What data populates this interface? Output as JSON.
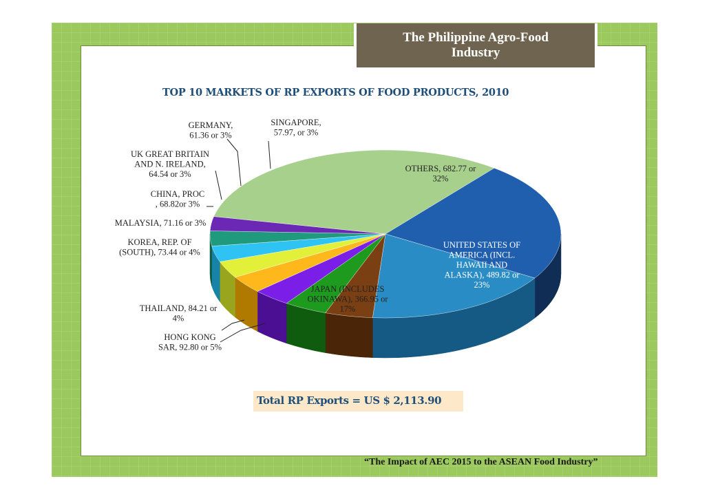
{
  "slide": {
    "header_title": "The Philippine Agro-Food Industry",
    "footer": "“The Impact of AEC 2015 to the ASEAN Food Industry”",
    "total_exports": "Total RP Exports = US $ 2,113.90"
  },
  "chart_data": {
    "type": "pie",
    "title": "TOP 10 MARKETS OF RP EXPORTS OF FOOD PRODUCTS, 2010",
    "slices": [
      {
        "name": "OTHERS",
        "value": 682.77,
        "percent": 32,
        "color": "#a8d08d",
        "side": "#6f9a55",
        "label": [
          "OTHERS, 682.77 or",
          "32%"
        ]
      },
      {
        "name": "UNITED STATES OF AMERICA (INCL. HAWAII AND ALASKA)",
        "value": 489.82,
        "percent": 23,
        "color": "#1f5fae",
        "side": "#0f2d55",
        "label": [
          "UNITED STATES OF",
          "AMERICA (INCL.",
          "HAWAII AND",
          "ALASKA), 489.82 or",
          "23%"
        ]
      },
      {
        "name": "JAPAN (INCLUDES OKINAWA)",
        "value": 366.95,
        "percent": 17,
        "color": "#2a8cc4",
        "side": "#155a85",
        "label": [
          "JAPAN (INCLUDES",
          "OKINAWA), 366.95 or",
          "17%"
        ]
      },
      {
        "name": "HONG KONG SAR",
        "value": 92.8,
        "percent": 5,
        "color": "#7a3f12",
        "side": "#4a2508",
        "label": [
          "HONG KONG",
          "SAR, 92.80 or 5%"
        ]
      },
      {
        "name": "THAILAND",
        "value": 84.21,
        "percent": 4,
        "color": "#1e9a1e",
        "side": "#0f5c0f",
        "label": [
          "THAILAND, 84.21 or",
          "4%"
        ]
      },
      {
        "name": "KOREA, REP. OF (SOUTH)",
        "value": 73.44,
        "percent": 4,
        "color": "#7b1fe8",
        "side": "#4a0f92",
        "label": [
          "KOREA, REP. OF",
          "(SOUTH), 73.44 or 4%"
        ]
      },
      {
        "name": "MALAYSIA",
        "value": 71.16,
        "percent": 3,
        "color": "#ffb81c",
        "side": "#b07a00",
        "label": [
          "MALAYSIA, 71.16 or 3%"
        ]
      },
      {
        "name": "CHINA, PROC",
        "value": 68.82,
        "percent": 3,
        "color": "#e2f03a",
        "side": "#9aa51e",
        "label": [
          "CHINA, PROC",
          ", 68.82or 3%"
        ]
      },
      {
        "name": "UK GREAT BRITAIN AND N. IRELAND",
        "value": 64.54,
        "percent": 3,
        "color": "#2ec3f2",
        "side": "#1783a6",
        "label": [
          "UK GREAT BRITAIN",
          "AND N. IRELAND,",
          "64.54 or 3%"
        ]
      },
      {
        "name": "GERMANY",
        "value": 61.36,
        "percent": 3,
        "color": "#1f9a7c",
        "side": "#0f5e4a",
        "label": [
          "GERMANY,",
          "61.36 or 3%"
        ]
      },
      {
        "name": "SINGAPORE",
        "value": 57.97,
        "percent": 3,
        "color": "#6a28b4",
        "side": "#3e1370",
        "label": [
          "SINGAPORE,",
          "57.97, or 3%"
        ]
      }
    ]
  }
}
